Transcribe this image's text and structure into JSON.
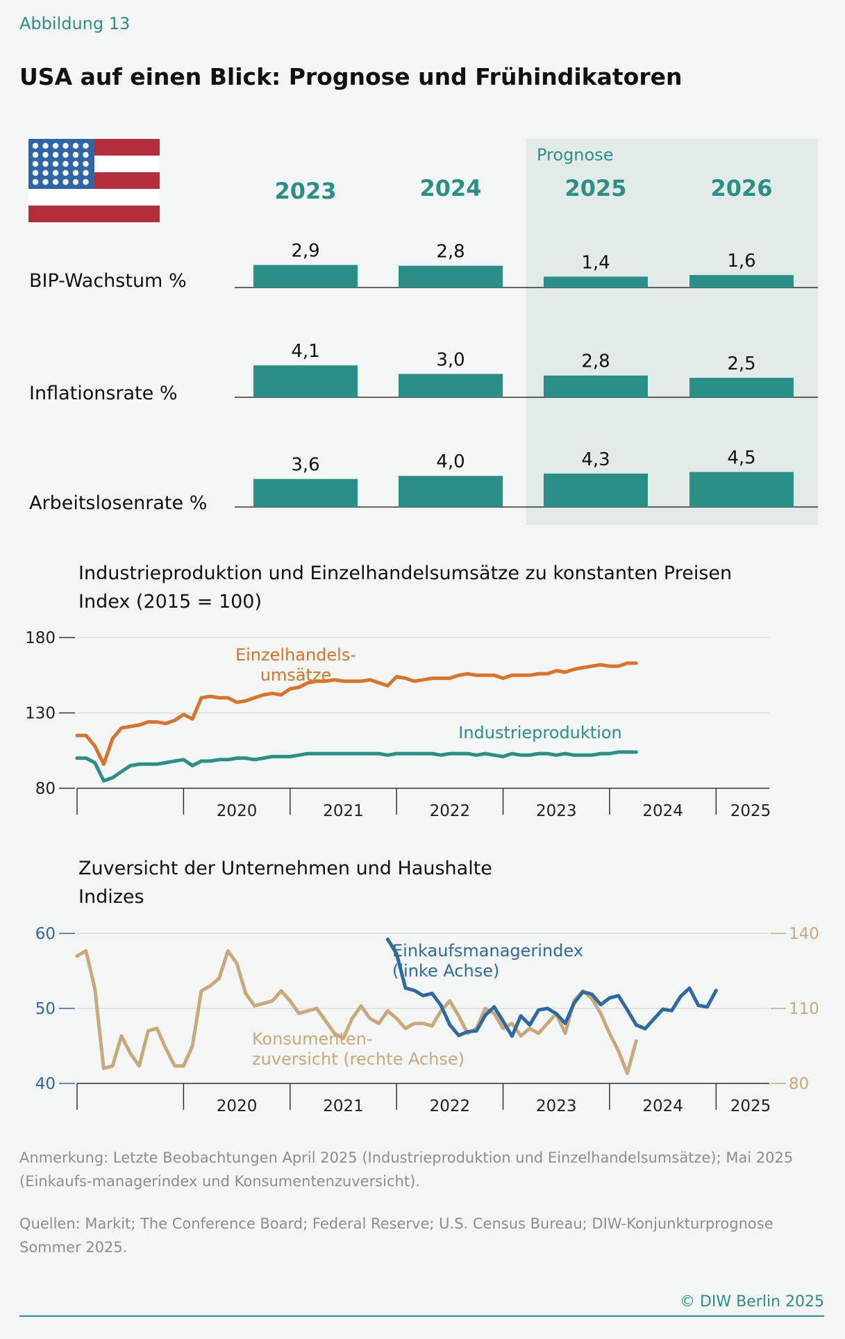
{
  "header": {
    "figure_label": "Abbildung 13",
    "title": "USA auf einen Blick: Prognose und Frühindikatoren"
  },
  "colors": {
    "teal": "#2a8f87",
    "orange": "#d9732b",
    "blue": "#2b6aa6",
    "tan": "#c9a97a",
    "forecast_bg": "#e3ebe8",
    "flag_red": "#b32d3a",
    "flag_blue": "#2d66a8"
  },
  "overview": {
    "prognose_label": "Prognose",
    "years": [
      "2023",
      "2024",
      "2025",
      "2026"
    ],
    "forecast_years": [
      "2025",
      "2026"
    ],
    "flag_icon": "us-flag-icon",
    "rows": [
      {
        "label": "BIP-Wachstum %",
        "values": [
          2.9,
          2.8,
          1.4,
          1.6
        ],
        "display": [
          "2,9",
          "2,8",
          "1,4",
          "1,6"
        ]
      },
      {
        "label": "Inflationsrate %",
        "values": [
          4.1,
          3.0,
          2.8,
          2.5
        ],
        "display": [
          "4,1",
          "3,0",
          "2,8",
          "2,5"
        ]
      },
      {
        "label": "Arbeitslosenrate %",
        "values": [
          3.6,
          4.0,
          4.3,
          4.5
        ],
        "display": [
          "3,6",
          "4,0",
          "4,3",
          "4,5"
        ]
      }
    ]
  },
  "chart_data": [
    {
      "type": "line",
      "title": "Industrieproduktion und Einzelhandelsumsätze zu konstanten Preisen",
      "subtitle": "Index (2015 = 100)",
      "ylim": [
        80,
        180
      ],
      "yticks": [
        80,
        130,
        180
      ],
      "x_range": [
        2019.0,
        2025.5
      ],
      "x_tick_labels": [
        "2020",
        "2021",
        "2022",
        "2023",
        "2024",
        "2025"
      ],
      "series": [
        {
          "name": "Einzelhandelsumsätze",
          "label_lines": [
            "Einzelhandels-",
            "umsätze"
          ],
          "color_key": "orange",
          "x_start": 2019.0,
          "step": 0.08333,
          "values": [
            115,
            115,
            108,
            96,
            113,
            120,
            121,
            122,
            124,
            124,
            123,
            125,
            129,
            126,
            140,
            141,
            140,
            140,
            137,
            138,
            140,
            142,
            143,
            142,
            146,
            147,
            150,
            151,
            151,
            152,
            151,
            151,
            151,
            152,
            150,
            148,
            154,
            153,
            151,
            152,
            153,
            153,
            153,
            155,
            156,
            155,
            155,
            155,
            153,
            155,
            155,
            155,
            156,
            156,
            158,
            157,
            159,
            160,
            161,
            162,
            161,
            161,
            163,
            163
          ]
        },
        {
          "name": "Industrieproduktion",
          "label_lines": [
            "Industrieproduktion"
          ],
          "color_key": "teal",
          "x_start": 2019.0,
          "step": 0.08333,
          "values": [
            100,
            100,
            97,
            85,
            87,
            91,
            95,
            96,
            96,
            96,
            97,
            98,
            99,
            95,
            98,
            98,
            99,
            99,
            100,
            100,
            99,
            100,
            101,
            101,
            101,
            102,
            103,
            103,
            103,
            103,
            103,
            103,
            103,
            103,
            103,
            102,
            103,
            103,
            103,
            103,
            103,
            102,
            103,
            103,
            103,
            102,
            103,
            102,
            101,
            103,
            102,
            102,
            103,
            103,
            102,
            103,
            102,
            102,
            102,
            103,
            103,
            104,
            104,
            104
          ]
        }
      ]
    },
    {
      "type": "line",
      "title": "Zuversicht der Unternehmen und Haushalte",
      "subtitle": "Indizes",
      "x_range": [
        2019.0,
        2025.5
      ],
      "x_tick_labels": [
        "2020",
        "2021",
        "2022",
        "2023",
        "2024",
        "2025"
      ],
      "left_axis": {
        "ylim": [
          40,
          60
        ],
        "yticks": [
          40,
          50,
          60
        ]
      },
      "right_axis": {
        "ylim": [
          80,
          140
        ],
        "yticks": [
          80,
          110,
          140
        ]
      },
      "series": [
        {
          "name": "Einkaufsmanagerindex",
          "label_lines": [
            "Einkaufsmanagerindex",
            "(linke Achse)"
          ],
          "axis": "left",
          "color_key": "blue",
          "x_start": 2021.917,
          "step": 0.08333,
          "values": [
            59.2,
            57.3,
            52.7,
            52.4,
            51.7,
            52.0,
            50.4,
            47.8,
            46.4,
            46.9,
            47.0,
            49.1,
            50.2,
            48.3,
            46.3,
            49.0,
            47.8,
            49.8,
            50.0,
            49.3,
            48.0,
            50.7,
            52.2,
            51.9,
            50.5,
            51.4,
            51.7,
            49.8,
            47.8,
            47.3,
            48.6,
            49.9,
            49.7,
            51.6,
            52.7,
            50.4,
            50.2,
            52.4
          ]
        },
        {
          "name": "Konsumentenzuversicht",
          "label_lines": [
            "Konsumenten-",
            "zuversicht (rechte Achse)"
          ],
          "axis": "right",
          "color_key": "tan",
          "x_start": 2019.0,
          "step": 0.08333,
          "values": [
            131,
            133,
            118,
            86,
            87,
            99,
            92,
            87,
            101,
            102,
            94,
            87,
            87,
            95,
            117,
            119,
            122,
            133,
            128,
            116,
            111,
            112,
            113,
            117,
            113,
            108,
            109,
            110,
            105,
            100,
            98,
            106,
            111,
            106,
            104,
            109,
            106,
            102,
            104,
            104,
            103,
            109,
            113,
            107,
            100,
            102,
            110,
            108,
            102,
            104,
            99,
            102,
            100,
            104,
            108,
            100,
            113,
            117,
            114,
            108,
            100,
            93,
            84,
            97
          ]
        }
      ]
    }
  ],
  "footer": {
    "note": "Anmerkung: Letzte Beobachtungen April 2025 (Industrieproduktion und Einzelhandelsumsätze); Mai 2025 (Einkaufs-managerindex und Konsumentenzuversicht).",
    "sources": "Quellen: Markit; The Conference Board; Federal Reserve; U.S. Census Bureau; DIW-Konjunkturprognose Sommer 2025.",
    "copyright": "© DIW Berlin 2025"
  }
}
